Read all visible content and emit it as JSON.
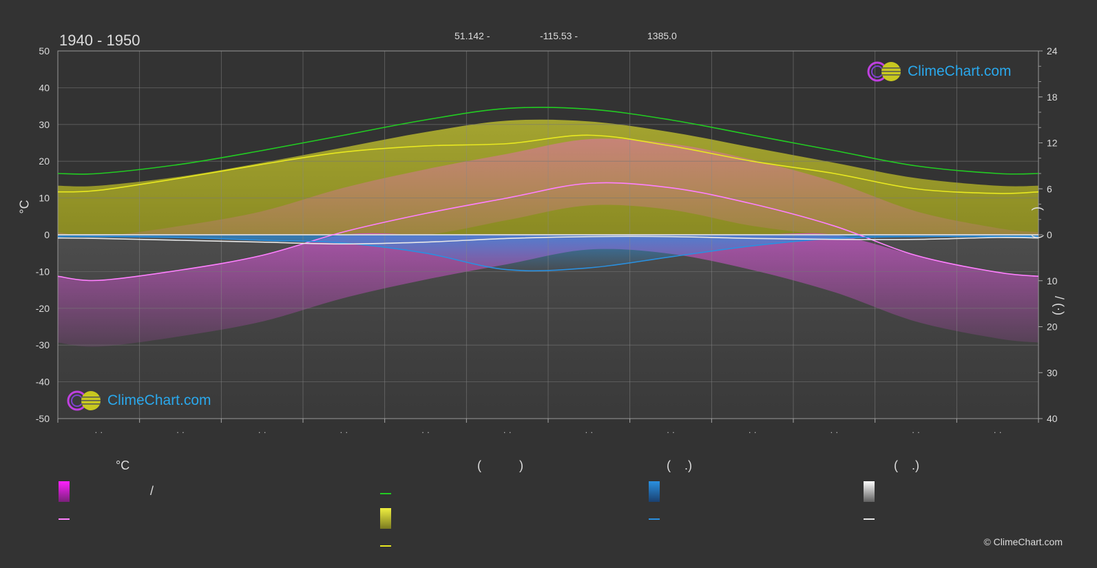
{
  "header": {
    "title": "1940 - 1950",
    "lat": "51.142 -",
    "lon": "-115.53 -",
    "elev": "1385.0"
  },
  "axes": {
    "left_unit": "°C",
    "right_label_top": "(       )",
    "right_label_bottom": "/ (·)",
    "month_labels": [
      "· ·",
      "· ·",
      "· ·",
      "· ·",
      "· ·",
      "· ·",
      "· ·",
      "· ·",
      "· ·",
      "· ·",
      "· ·",
      "· ·"
    ]
  },
  "legend": {
    "col1_head": "°C",
    "col1_slash": "/",
    "col2_head": "(           )",
    "col3_head": "(    .)",
    "col4_head": "(    .)"
  },
  "logo_text": "ClimeChart.com",
  "copyright": "© ClimeChart.com",
  "colors": {
    "background": "#333333",
    "daylight": "#22cc22",
    "sunshine": "#e8e820",
    "temp_max_line": "#ff80ff",
    "temp_fill": "#e040e0",
    "rain": "#2a90e0",
    "snow": "#e8e8e8",
    "accent_text": "#2aa8ec"
  },
  "chart_data": {
    "type": "area",
    "title": "1940 - 1950",
    "x": [
      1,
      2,
      3,
      4,
      5,
      6,
      7,
      8,
      9,
      10,
      11,
      12
    ],
    "left_axis": {
      "label": "°C",
      "ylim": [
        -50,
        50
      ],
      "ticks": [
        50,
        40,
        30,
        20,
        10,
        0,
        -10,
        -20,
        -30,
        -40,
        -50
      ]
    },
    "right_axis_top": {
      "ylim": [
        0,
        24
      ],
      "ticks": [
        24,
        18,
        12,
        6,
        0
      ]
    },
    "right_axis_bottom": {
      "ylim": [
        0,
        40
      ],
      "ticks": [
        0,
        10,
        20,
        30,
        40
      ]
    },
    "grid": true,
    "series": [
      {
        "axis": "right_top",
        "values": [
          8.0,
          9.2,
          11.0,
          13.0,
          15.0,
          16.5,
          16.4,
          15.0,
          13.0,
          11.0,
          9.0,
          8.0
        ]
      },
      {
        "axis": "right_top",
        "values": [
          5.8,
          7.4,
          9.2,
          10.8,
          11.6,
          11.9,
          13.0,
          11.6,
          9.6,
          8.0,
          6.0,
          5.4
        ]
      },
      {
        "axis": "left",
        "values": [
          -12.4,
          -9.6,
          -5.6,
          0.8,
          5.8,
          10.0,
          14.0,
          12.8,
          8.4,
          2.4,
          -5.6,
          -10.2
        ]
      },
      {
        "axis": "right_bottom",
        "values": [
          0.4,
          0.6,
          1.2,
          1.8,
          4.0,
          7.6,
          7.2,
          4.8,
          2.4,
          0.8,
          0.4,
          0.4
        ]
      },
      {
        "axis": "right_bottom",
        "values": [
          0.8,
          1.2,
          1.6,
          2.0,
          1.6,
          0.8,
          0.4,
          0.4,
          0.8,
          1.0,
          1.0,
          0.6
        ]
      }
    ]
  }
}
